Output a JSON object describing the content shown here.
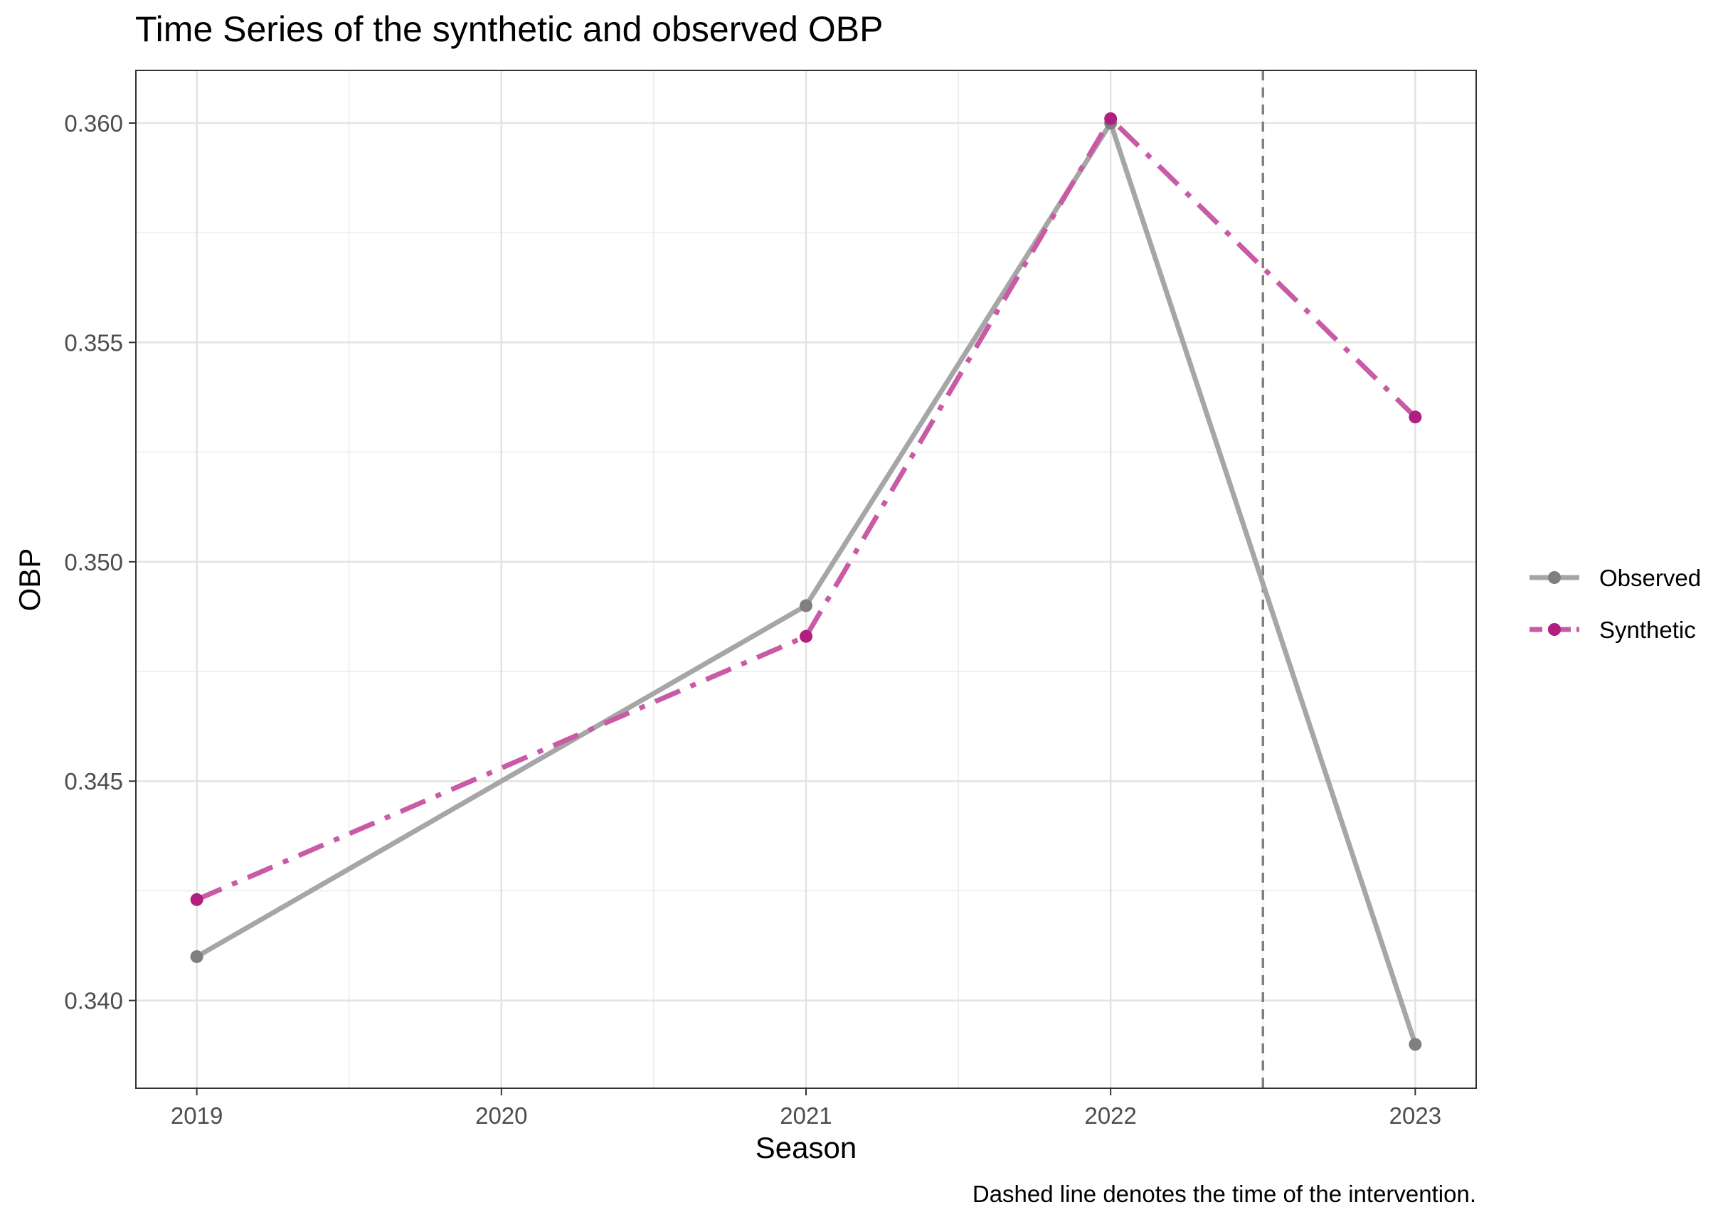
{
  "chart_data": {
    "type": "line",
    "title": "Time Series of the synthetic and observed OBP",
    "xlabel": "Season",
    "ylabel": "OBP",
    "caption": "Dashed line denotes the time of the intervention.",
    "x": [
      2019,
      2020,
      2021,
      2022,
      2023
    ],
    "x_ticks": [
      "2019",
      "2020",
      "2021",
      "2022",
      "2023"
    ],
    "xlim": [
      2018.8,
      2023.2
    ],
    "ylim": [
      0.338,
      0.3612
    ],
    "y_ticks": [
      0.34,
      0.345,
      0.35,
      0.355,
      0.36
    ],
    "y_tick_labels": [
      "0.340",
      "0.345",
      "0.350",
      "0.355",
      "0.360"
    ],
    "intervention_x": 2022.5,
    "grid": true,
    "legend_position": "right",
    "series": [
      {
        "name": "Observed",
        "x": [
          2019,
          2020,
          2021,
          2022,
          2023
        ],
        "values": [
          0.341,
          null,
          0.349,
          0.36,
          0.339
        ],
        "color": "#A6A6A6",
        "point_color": "#7F7F7F",
        "style": "solid"
      },
      {
        "name": "Synthetic",
        "x": [
          2019,
          2021,
          2022,
          2023
        ],
        "values": [
          0.3423,
          0.3483,
          0.3601,
          0.3533
        ],
        "color": "#C85AA6",
        "point_color": "#B01E80",
        "style": "dashdot"
      }
    ]
  }
}
